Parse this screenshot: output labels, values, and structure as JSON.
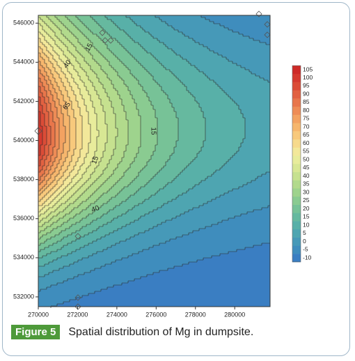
{
  "chart_data": {
    "type": "contour",
    "xticks": [
      270000,
      272000,
      274000,
      276000,
      278000,
      280000
    ],
    "xlim": [
      270000,
      281800
    ],
    "yticks": [
      532000,
      534000,
      536000,
      538000,
      540000,
      542000,
      544000,
      546000
    ],
    "ylim": [
      531500,
      546400
    ],
    "levels": [
      -10,
      -5,
      0,
      5,
      10,
      15,
      20,
      25,
      30,
      35,
      40,
      45,
      50,
      55,
      60,
      65,
      70,
      75,
      80,
      85,
      90,
      95,
      100,
      105
    ],
    "colors": [
      "#3a7ec2",
      "#3f8dbd",
      "#4699b8",
      "#4ea5b1",
      "#58b0a8",
      "#66b99f",
      "#77c297",
      "#8acb91",
      "#9ed38d",
      "#b2da8c",
      "#c6e18f",
      "#d8e794",
      "#e8ec9b",
      "#f3e89a",
      "#f7da8c",
      "#f8c97c",
      "#f6b66d",
      "#f3a261",
      "#ee8c56",
      "#e8764b",
      "#e26141",
      "#db4c37",
      "#d53a2f",
      "#ce2a28"
    ],
    "contour_labels": [
      15,
      40,
      65,
      15,
      40,
      15
    ],
    "caption_label": "Figure 5",
    "caption": "Spatial distribution of Mg in dumpsite."
  }
}
